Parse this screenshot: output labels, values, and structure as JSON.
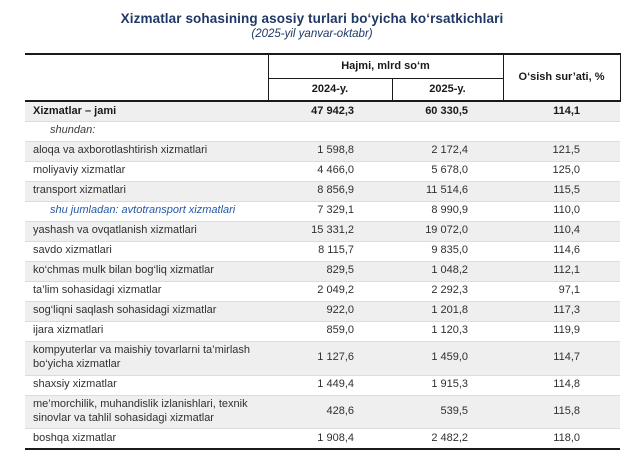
{
  "title": "Xizmatlar sohasining asosiy turlari bo‘yicha ko‘rsatkichlari",
  "subtitle": "(2025-yil yanvar-oktabr)",
  "colors": {
    "title_navy": "#1F3864",
    "sub_row_blue": "#2458A6",
    "alt_row_gray": "#EFEFEF",
    "border_black": "#1A1A1A"
  },
  "table": {
    "headers": {
      "volume": "Hajmi, mlrd so‘m",
      "y2024": "2024-y.",
      "y2025": "2025-y.",
      "growth": "O‘sish sur’ati, %"
    },
    "rows": [
      {
        "label": "Xizmatlar – jami",
        "v2024": "47 942,3",
        "v2025": "60 330,5",
        "growth": "114,1"
      },
      {
        "label": "shundan:",
        "v2024": "",
        "v2025": "",
        "growth": ""
      },
      {
        "label": "aloqa va axborotlashtirish xizmatlari",
        "v2024": "1 598,8",
        "v2025": "2 172,4",
        "growth": "121,5"
      },
      {
        "label": "moliyaviy xizmatlar",
        "v2024": "4 466,0",
        "v2025": "5 678,0",
        "growth": "125,0"
      },
      {
        "label": "transport xizmatlari",
        "v2024": "8 856,9",
        "v2025": "11 514,6",
        "growth": "115,5"
      },
      {
        "label": "shu jumladan: avtotransport xizmatlari",
        "v2024": "7 329,1",
        "v2025": "8 990,9",
        "growth": "110,0"
      },
      {
        "label": "yashash va ovqatlanish xizmatlari",
        "v2024": "15 331,2",
        "v2025": "19 072,0",
        "growth": "110,4"
      },
      {
        "label": "savdo xizmatlari",
        "v2024": "8 115,7",
        "v2025": "9 835,0",
        "growth": "114,6"
      },
      {
        "label": "ko‘chmas mulk bilan bog‘liq xizmatlar",
        "v2024": "829,5",
        "v2025": "1 048,2",
        "growth": "112,1"
      },
      {
        "label": "ta’lim sohasidagi xizmatlar",
        "v2024": "2 049,2",
        "v2025": "2 292,3",
        "growth": "97,1"
      },
      {
        "label": "sog‘liqni saqlash sohasidagi xizmatlar",
        "v2024": "922,0",
        "v2025": "1 201,8",
        "growth": "117,3"
      },
      {
        "label": "ijara xizmatlari",
        "v2024": "859,0",
        "v2025": "1 120,3",
        "growth": "119,9"
      },
      {
        "label": "kompyuterlar va maishiy tovarlarni ta’mirlash bo‘yicha xizmatlar",
        "v2024": "1 127,6",
        "v2025": "1 459,0",
        "growth": "114,7"
      },
      {
        "label": "shaxsiy xizmatlar",
        "v2024": "1 449,4",
        "v2025": "1 915,3",
        "growth": "114,8"
      },
      {
        "label": "me’morchilik, muhandislik izlanishlari, texnik sinovlar va tahlil sohasidagi xizmatlar",
        "v2024": "428,6",
        "v2025": "539,5",
        "growth": "115,8"
      },
      {
        "label": "boshqa xizmatlar",
        "v2024": "1 908,4",
        "v2025": "2 482,2",
        "growth": "118,0"
      }
    ]
  }
}
